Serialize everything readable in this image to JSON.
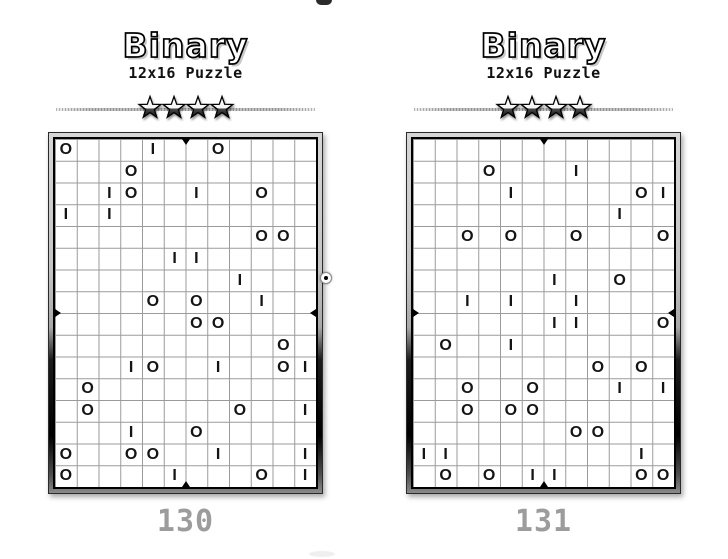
{
  "puzzles": [
    {
      "title": "Binary",
      "subtitle": "12x16 Puzzle",
      "stars": 4,
      "page_number": "130",
      "grid_size": {
        "cols": 12,
        "rows": 16
      },
      "grid": [
        "O...I..O....",
        "...O........",
        "..IO..I..O..",
        "I.I.........",
        ".........OO.",
        ".....II.....",
        "........I...",
        "....O.O..I..",
        "......OO....",
        "..........O.",
        "...IO..I..OI",
        ".O..........",
        ".O......O..I",
        "...I..O.....",
        "O..OO..I...I",
        "O....I...O.I"
      ]
    },
    {
      "title": "Binary",
      "subtitle": "12x16 Puzzle",
      "stars": 4,
      "page_number": "131",
      "grid_size": {
        "cols": 12,
        "rows": 16
      },
      "grid": [
        "............",
        "...O...I....",
        "....I.....OI",
        ".........I..",
        "..O.O..O...O",
        "............",
        "......I..O..",
        "..I.I..I....",
        "......II...O",
        ".O..I.......",
        "........O.O.",
        "..O..O...I.I",
        "..O.OO......",
        ".......OO...",
        "II........I.",
        ".O.O.II...OO"
      ]
    }
  ],
  "decorations": {
    "registration_mark": "circle-dot-crop-mark",
    "grid_crop_marks": "triangle-midpoint-marks",
    "star_icon": "five-point-star"
  },
  "colors": {
    "page_number": "#9c9c9c",
    "grid_line": "#9a9a9a",
    "cell_text": "#141414",
    "frame_light": "#d6d6d6",
    "frame_dark": "#000000"
  }
}
